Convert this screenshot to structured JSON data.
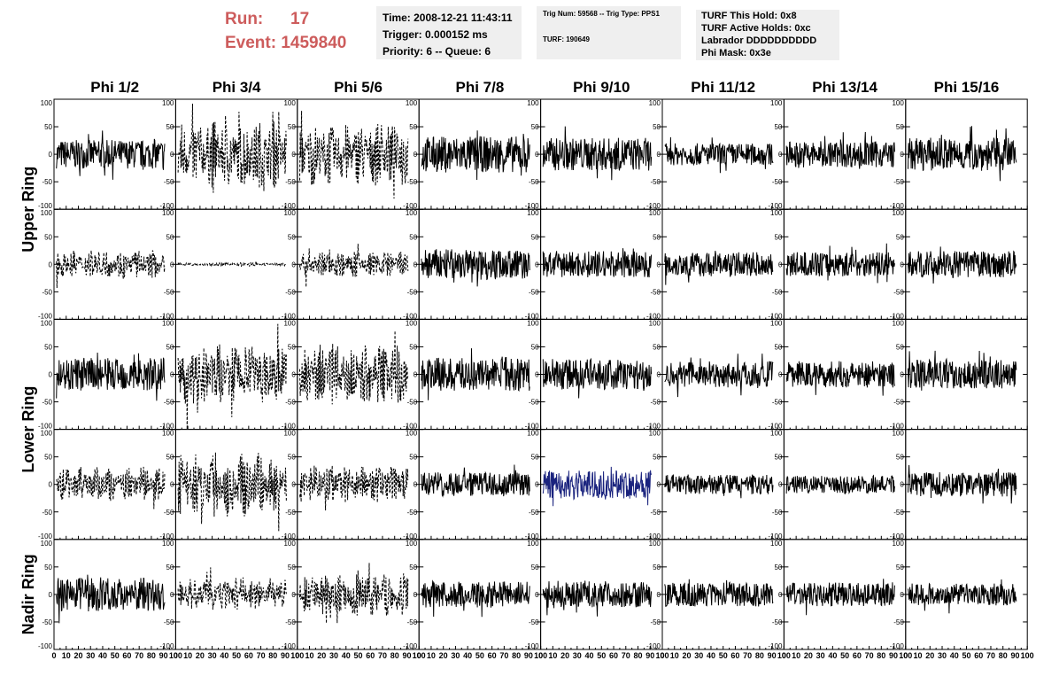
{
  "header": {
    "run_label": "Run:",
    "run_value": "17",
    "event_label": "Event:",
    "event_value": "1459840",
    "time_line": "Time: 2008-12-21 11:43:11",
    "trigger_line": "Trigger: 0.000152 ms",
    "priority_line": "Priority: 6 -- Queue: 6",
    "trig_num_line": "Trig Num: 59568 -- Trig Type: PPS1",
    "turf_line": "TURF: 190649",
    "turf_hold_line": "TURF This Hold: 0x8",
    "turf_active_line": "TURF Active Holds: 0xc",
    "labrador_line": "Labrador DDDDDDDDDD",
    "phi_mask_line": "Phi Mask: 0x3e"
  },
  "colors": {
    "header_red": "#cd5c5c",
    "info_bg": "#efefef",
    "trace": "#000000",
    "highlight_trace": "#1a237e"
  },
  "chart_data": {
    "type": "line",
    "description_grid": "5 rows x 8 columns of waveform panels",
    "column_titles": [
      "Phi 1/2",
      "Phi 3/4",
      "Phi 5/6",
      "Phi 7/8",
      "Phi 9/10",
      "Phi 11/12",
      "Phi 13/14",
      "Phi 15/16"
    ],
    "ring_labels": [
      "Upper Ring",
      "Lower Ring",
      "Nadir Ring"
    ],
    "ylim": [
      -100,
      100
    ],
    "xlim": [
      0,
      100
    ],
    "yticks": [
      "100",
      "50",
      "0",
      "-50",
      "-100"
    ],
    "xticks": [
      "0",
      "10",
      "20",
      "30",
      "40",
      "50",
      "60",
      "70",
      "80",
      "90",
      "100"
    ],
    "dashed_panels": [
      [
        0,
        1
      ],
      [
        0,
        2
      ],
      [
        1,
        0
      ],
      [
        1,
        1
      ],
      [
        1,
        2
      ],
      [
        2,
        1
      ],
      [
        2,
        2
      ],
      [
        3,
        0
      ],
      [
        3,
        1
      ],
      [
        3,
        2
      ],
      [
        4,
        1
      ],
      [
        4,
        2
      ]
    ],
    "highlighted_panel": [
      3,
      4
    ],
    "amplitude": [
      [
        26,
        62,
        58,
        33,
        30,
        20,
        24,
        30
      ],
      [
        26,
        3,
        25,
        28,
        24,
        22,
        22,
        24
      ],
      [
        30,
        58,
        58,
        30,
        28,
        24,
        24,
        26
      ],
      [
        32,
        60,
        35,
        22,
        26,
        18,
        16,
        22
      ],
      [
        30,
        30,
        40,
        24,
        24,
        22,
        22,
        20
      ]
    ]
  }
}
